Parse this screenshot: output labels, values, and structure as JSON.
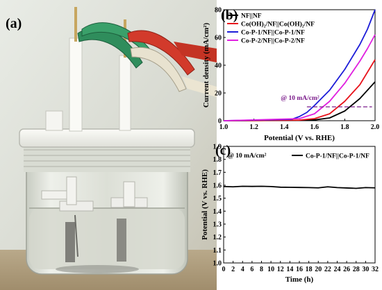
{
  "photo": {
    "panel_label": "(a)",
    "description_icon": "electrochemical-cell-photo"
  },
  "colors": {
    "black": "#000000",
    "red": "#e8141c",
    "blue": "#1c1cd8",
    "magenta": "#e020e0",
    "annotation_purple": "#7a1a8a"
  },
  "chart_data": [
    {
      "type": "line",
      "panel_label": "(b)",
      "xlabel": "Potential (V vs. RHE)",
      "ylabel": "Current density (mA/cm²)",
      "xlim": [
        1.0,
        2.0
      ],
      "ylim": [
        0,
        80
      ],
      "xticks": [
        "1.0",
        "1.2",
        "1.4",
        "1.6",
        "1.8",
        "2.0"
      ],
      "yticks": [
        "0",
        "20",
        "40",
        "60",
        "80"
      ],
      "legend_position": "top-left",
      "annotation": {
        "text": "@ 10 mA/cm²",
        "y": 10
      },
      "series": [
        {
          "name": "NF||NF",
          "color": "#000000",
          "points": [
            [
              1.0,
              0
            ],
            [
              1.5,
              0.2
            ],
            [
              1.6,
              0.6
            ],
            [
              1.7,
              2
            ],
            [
              1.8,
              7
            ],
            [
              1.9,
              16
            ],
            [
              1.95,
              22
            ],
            [
              2.0,
              28
            ]
          ]
        },
        {
          "name": "Co(OH)₂/NF||Co(OH)₂/NF",
          "color": "#e8141c",
          "points": [
            [
              1.0,
              0
            ],
            [
              1.5,
              0.4
            ],
            [
              1.6,
              1.5
            ],
            [
              1.7,
              5
            ],
            [
              1.8,
              14
            ],
            [
              1.9,
              26
            ],
            [
              1.95,
              35
            ],
            [
              2.0,
              44
            ]
          ]
        },
        {
          "name": "Co-P-1/NF||Co-P-1/NF",
          "color": "#1c1cd8",
          "points": [
            [
              1.0,
              0
            ],
            [
              1.45,
              1
            ],
            [
              1.5,
              3
            ],
            [
              1.55,
              6
            ],
            [
              1.6,
              11
            ],
            [
              1.7,
              22
            ],
            [
              1.8,
              37
            ],
            [
              1.9,
              55
            ],
            [
              1.95,
              66
            ],
            [
              2.0,
              80
            ]
          ]
        },
        {
          "name": "Co-P-2/NF||Co-P-2/NF",
          "color": "#e020e0",
          "points": [
            [
              1.0,
              0
            ],
            [
              1.5,
              1.5
            ],
            [
              1.6,
              5
            ],
            [
              1.7,
              14
            ],
            [
              1.8,
              27
            ],
            [
              1.9,
              43
            ],
            [
              1.95,
              52
            ],
            [
              2.0,
              62
            ]
          ]
        }
      ]
    },
    {
      "type": "line",
      "panel_label": "(c)",
      "xlabel": "Time (h)",
      "ylabel": "Potential (V vs. RHE)",
      "xlim": [
        0,
        32
      ],
      "ylim": [
        1.0,
        1.9
      ],
      "xticks": [
        "0",
        "2",
        "4",
        "6",
        "8",
        "10",
        "12",
        "14",
        "16",
        "18",
        "20",
        "22",
        "24",
        "26",
        "28",
        "30",
        "32"
      ],
      "yticks": [
        "1.0",
        "1.1",
        "1.2",
        "1.3",
        "1.4",
        "1.5",
        "1.6",
        "1.7",
        "1.8",
        "1.9"
      ],
      "legend_position": "top-right",
      "annotation": {
        "text": "@ 10 mA/cm²"
      },
      "series": [
        {
          "name": "Co-P-1/NF||Co-P-1/NF",
          "color": "#000000",
          "points": [
            [
              0,
              1.59
            ],
            [
              2,
              1.588
            ],
            [
              4,
              1.592
            ],
            [
              6,
              1.591
            ],
            [
              8,
              1.592
            ],
            [
              10,
              1.59
            ],
            [
              12,
              1.585
            ],
            [
              14,
              1.584
            ],
            [
              16,
              1.583
            ],
            [
              18,
              1.582
            ],
            [
              20,
              1.58
            ],
            [
              22,
              1.588
            ],
            [
              24,
              1.582
            ],
            [
              26,
              1.579
            ],
            [
              28,
              1.576
            ],
            [
              30,
              1.582
            ],
            [
              32,
              1.58
            ]
          ]
        }
      ]
    }
  ]
}
